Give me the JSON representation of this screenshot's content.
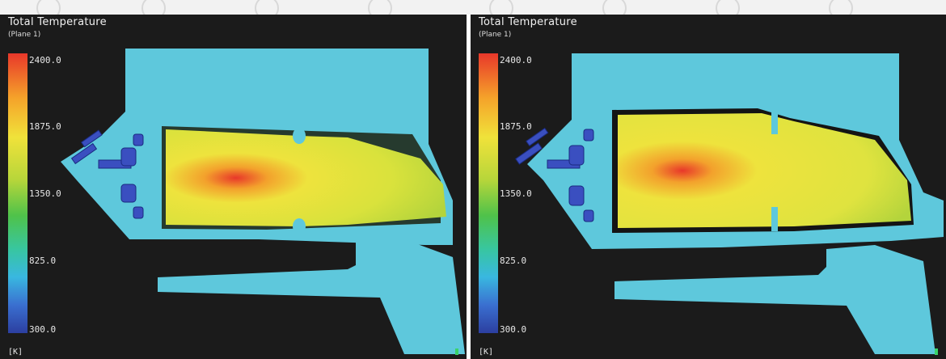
{
  "panels": [
    {
      "title": "Total Temperature",
      "subtitle": "(Plane  1)",
      "legend": {
        "ticks": [
          "2400.0",
          "1875.0",
          "1350.0",
          "825.0",
          "300.0"
        ],
        "unit": "[K]"
      },
      "colors": {
        "background": "#1b1b1b",
        "solid": "#5ec8dc",
        "hot": "#e8372a",
        "warm": "#f0e23a",
        "cool": "#b8d63a",
        "injector": "#3a4fc0"
      }
    },
    {
      "title": "Total Temperature",
      "subtitle": "(Plane  1)",
      "legend": {
        "ticks": [
          "2400.0",
          "1875.0",
          "1350.0",
          "825.0",
          "300.0"
        ],
        "unit": "[K]"
      },
      "colors": {
        "background": "#1b1b1b",
        "solid": "#5ec8dc",
        "hot": "#e8372a",
        "warm": "#f0e23a",
        "cool": "#b8d63a",
        "injector": "#3a4fc0"
      }
    }
  ]
}
